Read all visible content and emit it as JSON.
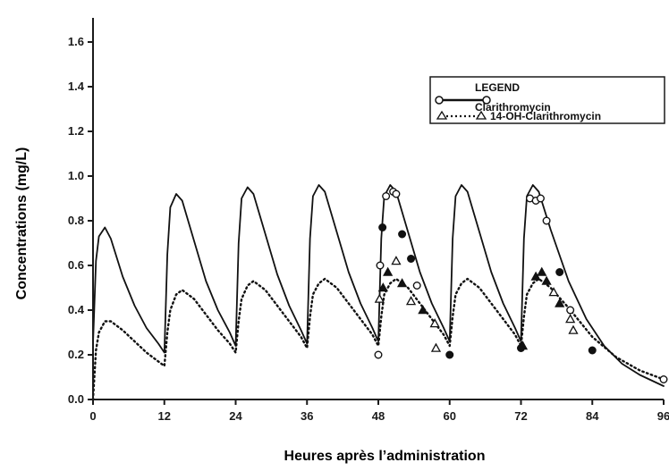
{
  "chart_data": {
    "type": "line",
    "xlabel": "Heures après l’administration",
    "ylabel": "Concentrations (mg/L)",
    "xlim": [
      0,
      96
    ],
    "ylim": [
      0,
      1.6
    ],
    "x_ticks": [
      0,
      12,
      24,
      36,
      48,
      60,
      72,
      84,
      96
    ],
    "y_ticks": [
      "0.0",
      "0.2",
      "0.4",
      "0.6",
      "0.8",
      "1.0",
      "1.2",
      "1.4",
      "1.6"
    ],
    "legend": {
      "title": "LEGEND",
      "placement": "top-right",
      "entries": [
        "Clarithromycin",
        "14-OH-Clarithromycin"
      ]
    },
    "series": [
      {
        "name": "Clarithromycin",
        "style": "solid",
        "marker": "circle",
        "color": "#111111",
        "points": [
          [
            0,
            0.25
          ],
          [
            0.5,
            0.62
          ],
          [
            1,
            0.73
          ],
          [
            2,
            0.77
          ],
          [
            3,
            0.72
          ],
          [
            5,
            0.55
          ],
          [
            7,
            0.42
          ],
          [
            9,
            0.32
          ],
          [
            11,
            0.25
          ],
          [
            12,
            0.21
          ],
          [
            12.5,
            0.65
          ],
          [
            13,
            0.86
          ],
          [
            14,
            0.92
          ],
          [
            15,
            0.89
          ],
          [
            17,
            0.71
          ],
          [
            19,
            0.53
          ],
          [
            21,
            0.4
          ],
          [
            23,
            0.3
          ],
          [
            24,
            0.24
          ],
          [
            24.5,
            0.7
          ],
          [
            25,
            0.9
          ],
          [
            26,
            0.95
          ],
          [
            27,
            0.92
          ],
          [
            29,
            0.74
          ],
          [
            31,
            0.56
          ],
          [
            33,
            0.42
          ],
          [
            35,
            0.31
          ],
          [
            36,
            0.25
          ],
          [
            36.5,
            0.72
          ],
          [
            37,
            0.91
          ],
          [
            38,
            0.96
          ],
          [
            39,
            0.93
          ],
          [
            41,
            0.75
          ],
          [
            43,
            0.57
          ],
          [
            45,
            0.43
          ],
          [
            47,
            0.32
          ],
          [
            48,
            0.26
          ],
          [
            48.5,
            0.72
          ],
          [
            49,
            0.91
          ],
          [
            50,
            0.96
          ],
          [
            51,
            0.93
          ],
          [
            53,
            0.75
          ],
          [
            55,
            0.57
          ],
          [
            57,
            0.43
          ],
          [
            59,
            0.32
          ],
          [
            60,
            0.26
          ],
          [
            60.5,
            0.72
          ],
          [
            61,
            0.91
          ],
          [
            62,
            0.96
          ],
          [
            63,
            0.93
          ],
          [
            65,
            0.75
          ],
          [
            67,
            0.57
          ],
          [
            69,
            0.43
          ],
          [
            71,
            0.32
          ],
          [
            72,
            0.26
          ],
          [
            72.5,
            0.72
          ],
          [
            73,
            0.91
          ],
          [
            74,
            0.96
          ],
          [
            75,
            0.93
          ],
          [
            77,
            0.76
          ],
          [
            80,
            0.53
          ],
          [
            83,
            0.36
          ],
          [
            86,
            0.24
          ],
          [
            89,
            0.16
          ],
          [
            92,
            0.11
          ],
          [
            96,
            0.06
          ]
        ]
      },
      {
        "name": "14-OH-Clarithromycin",
        "style": "dotted",
        "marker": "triangle",
        "color": "#111111",
        "points": [
          [
            0,
            0.0
          ],
          [
            0.5,
            0.22
          ],
          [
            1,
            0.3
          ],
          [
            2,
            0.35
          ],
          [
            3,
            0.35
          ],
          [
            5,
            0.31
          ],
          [
            7,
            0.26
          ],
          [
            9,
            0.21
          ],
          [
            11,
            0.17
          ],
          [
            12,
            0.15
          ],
          [
            12.5,
            0.3
          ],
          [
            13,
            0.4
          ],
          [
            14,
            0.47
          ],
          [
            15,
            0.49
          ],
          [
            17,
            0.45
          ],
          [
            19,
            0.38
          ],
          [
            21,
            0.31
          ],
          [
            23,
            0.25
          ],
          [
            24,
            0.21
          ],
          [
            24.5,
            0.35
          ],
          [
            25,
            0.45
          ],
          [
            26,
            0.51
          ],
          [
            27,
            0.53
          ],
          [
            29,
            0.49
          ],
          [
            31,
            0.42
          ],
          [
            33,
            0.35
          ],
          [
            35,
            0.28
          ],
          [
            36,
            0.23
          ],
          [
            36.5,
            0.37
          ],
          [
            37,
            0.47
          ],
          [
            38,
            0.52
          ],
          [
            39,
            0.54
          ],
          [
            41,
            0.5
          ],
          [
            43,
            0.43
          ],
          [
            45,
            0.36
          ],
          [
            47,
            0.29
          ],
          [
            48,
            0.24
          ],
          [
            48.5,
            0.37
          ],
          [
            49,
            0.47
          ],
          [
            50,
            0.52
          ],
          [
            51,
            0.54
          ],
          [
            53,
            0.5
          ],
          [
            55,
            0.43
          ],
          [
            57,
            0.36
          ],
          [
            59,
            0.29
          ],
          [
            60,
            0.24
          ],
          [
            60.5,
            0.37
          ],
          [
            61,
            0.47
          ],
          [
            62,
            0.52
          ],
          [
            63,
            0.54
          ],
          [
            65,
            0.5
          ],
          [
            67,
            0.43
          ],
          [
            69,
            0.36
          ],
          [
            71,
            0.29
          ],
          [
            72,
            0.24
          ],
          [
            72.5,
            0.37
          ],
          [
            73,
            0.47
          ],
          [
            74,
            0.52
          ],
          [
            75,
            0.54
          ],
          [
            77,
            0.5
          ],
          [
            80,
            0.41
          ],
          [
            84,
            0.28
          ],
          [
            88,
            0.19
          ],
          [
            92,
            0.13
          ],
          [
            96,
            0.09
          ]
        ]
      }
    ],
    "observed": [
      {
        "x": 48,
        "y": 0.2,
        "marker": "circle-open"
      },
      {
        "x": 48.3,
        "y": 0.6,
        "marker": "circle-open"
      },
      {
        "x": 48.7,
        "y": 0.77,
        "marker": "circle-filled"
      },
      {
        "x": 49.3,
        "y": 0.91,
        "marker": "circle-open"
      },
      {
        "x": 50.5,
        "y": 0.93,
        "marker": "circle-open"
      },
      {
        "x": 51,
        "y": 0.92,
        "marker": "circle-open"
      },
      {
        "x": 52,
        "y": 0.74,
        "marker": "circle-filled"
      },
      {
        "x": 53.5,
        "y": 0.63,
        "marker": "circle-filled"
      },
      {
        "x": 54.5,
        "y": 0.51,
        "marker": "circle-open"
      },
      {
        "x": 60,
        "y": 0.2,
        "marker": "circle-filled"
      },
      {
        "x": 72,
        "y": 0.23,
        "marker": "circle-filled"
      },
      {
        "x": 73.5,
        "y": 0.9,
        "marker": "circle-open"
      },
      {
        "x": 74.5,
        "y": 0.89,
        "marker": "circle-open"
      },
      {
        "x": 75.3,
        "y": 0.9,
        "marker": "circle-open"
      },
      {
        "x": 76.3,
        "y": 0.8,
        "marker": "circle-open"
      },
      {
        "x": 78.5,
        "y": 0.57,
        "marker": "circle-filled"
      },
      {
        "x": 80.3,
        "y": 0.4,
        "marker": "circle-open"
      },
      {
        "x": 84,
        "y": 0.22,
        "marker": "circle-filled"
      },
      {
        "x": 96,
        "y": 0.09,
        "marker": "circle-open"
      },
      {
        "x": 48.2,
        "y": 0.45,
        "marker": "triangle-open"
      },
      {
        "x": 48.8,
        "y": 0.5,
        "marker": "triangle-filled"
      },
      {
        "x": 49.6,
        "y": 0.57,
        "marker": "triangle-filled"
      },
      {
        "x": 51,
        "y": 0.62,
        "marker": "triangle-open"
      },
      {
        "x": 52,
        "y": 0.52,
        "marker": "triangle-filled"
      },
      {
        "x": 53.5,
        "y": 0.44,
        "marker": "triangle-open"
      },
      {
        "x": 55.5,
        "y": 0.4,
        "marker": "triangle-filled"
      },
      {
        "x": 57.5,
        "y": 0.34,
        "marker": "triangle-open"
      },
      {
        "x": 57.7,
        "y": 0.23,
        "marker": "triangle-open"
      },
      {
        "x": 72.3,
        "y": 0.24,
        "marker": "triangle-filled"
      },
      {
        "x": 74.5,
        "y": 0.55,
        "marker": "triangle-filled"
      },
      {
        "x": 75.5,
        "y": 0.57,
        "marker": "triangle-filled"
      },
      {
        "x": 76.3,
        "y": 0.53,
        "marker": "triangle-filled"
      },
      {
        "x": 77.5,
        "y": 0.48,
        "marker": "triangle-open"
      },
      {
        "x": 78.5,
        "y": 0.43,
        "marker": "triangle-filled"
      },
      {
        "x": 80.3,
        "y": 0.36,
        "marker": "triangle-open"
      },
      {
        "x": 80.8,
        "y": 0.31,
        "marker": "triangle-open"
      }
    ],
    "grid": false
  }
}
